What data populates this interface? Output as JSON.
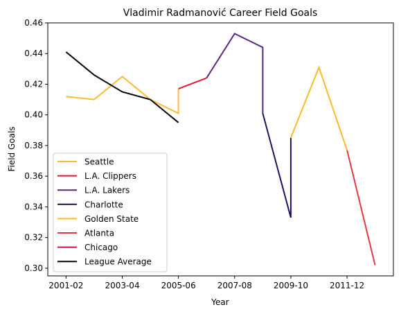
{
  "chart_data": {
    "type": "line",
    "title": "Vladimir Radmanović Career Field Goals",
    "xlabel": "Year",
    "ylabel": "Field Goals",
    "xlim": [
      -0.65,
      11.65
    ],
    "ylim": [
      0.295,
      0.46
    ],
    "x_ticks": [
      {
        "pos": 0,
        "label": "2001-02"
      },
      {
        "pos": 2,
        "label": "2003-04"
      },
      {
        "pos": 4,
        "label": "2005-06"
      },
      {
        "pos": 6,
        "label": "2007-08"
      },
      {
        "pos": 8,
        "label": "2009-10"
      },
      {
        "pos": 10,
        "label": "2011-12"
      }
    ],
    "y_ticks": [
      0.3,
      0.32,
      0.34,
      0.36,
      0.38,
      0.4,
      0.42,
      0.44,
      0.46
    ],
    "y_tick_labels": [
      "0.30",
      "0.32",
      "0.34",
      "0.36",
      "0.38",
      "0.40",
      "0.42",
      "0.44",
      "0.46"
    ],
    "legend_position": "lower-left",
    "series": [
      {
        "name": "Seattle",
        "color": "#FDBB30",
        "points": [
          [
            0,
            0.412
          ],
          [
            1,
            0.41
          ],
          [
            2,
            0.425
          ],
          [
            3,
            0.41
          ],
          [
            4,
            0.401
          ],
          [
            4,
            0.417
          ]
        ]
      },
      {
        "name": "L.A. Clippers",
        "color": "#E31837",
        "points": [
          [
            4,
            0.417
          ],
          [
            5,
            0.424
          ]
        ]
      },
      {
        "name": "L.A. Lakers",
        "color": "#552583",
        "points": [
          [
            5,
            0.424
          ],
          [
            6,
            0.453
          ],
          [
            7,
            0.444
          ],
          [
            7,
            0.401
          ]
        ]
      },
      {
        "name": "Charlotte",
        "color": "#1D1160",
        "points": [
          [
            7,
            0.401
          ],
          [
            8,
            0.333
          ],
          [
            8,
            0.385
          ]
        ]
      },
      {
        "name": "Golden State",
        "color": "#FDB927",
        "points": [
          [
            8,
            0.385
          ],
          [
            9,
            0.431
          ],
          [
            10,
            0.377
          ]
        ]
      },
      {
        "name": "Atlanta",
        "color": "#E03A3E",
        "points": [
          [
            10,
            0.377
          ],
          [
            11,
            0.302
          ]
        ]
      },
      {
        "name": "Chicago",
        "color": "#CE1141",
        "points": []
      },
      {
        "name": "League Average",
        "color": "#000000",
        "points": [
          [
            0,
            0.441
          ],
          [
            1,
            0.426
          ],
          [
            2,
            0.415
          ],
          [
            3,
            0.41
          ],
          [
            4,
            0.395
          ]
        ]
      }
    ]
  }
}
